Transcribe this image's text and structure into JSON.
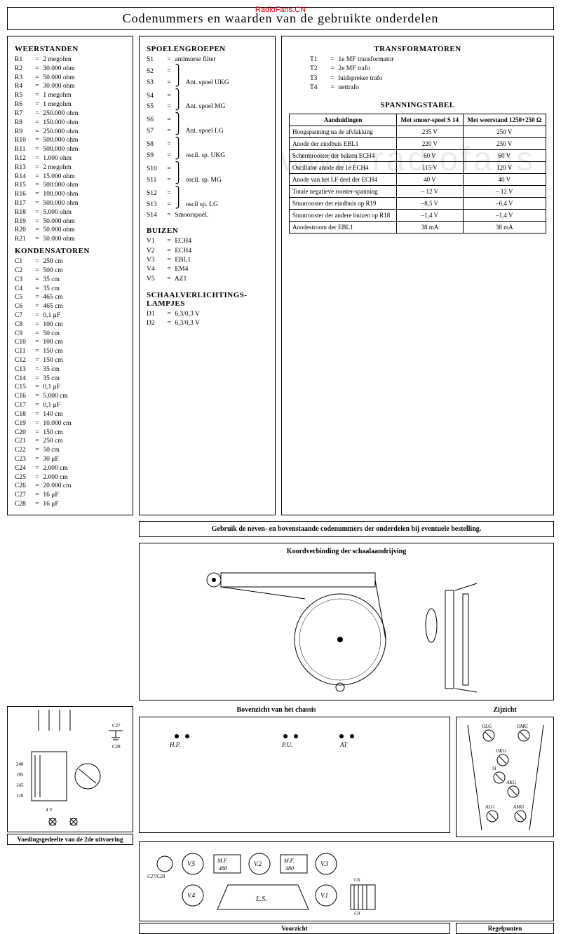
{
  "title": "Codenummers en waarden van de gebruikte onderdelen",
  "watermark_top": "RadioFans.CN",
  "watermark_bg": "www.radiofans",
  "sections": {
    "weerstanden": {
      "title": "WEERSTANDEN",
      "items": [
        {
          "ref": "R1",
          "val": "2 megohm"
        },
        {
          "ref": "R2",
          "val": "30.000 ohm"
        },
        {
          "ref": "R3",
          "val": "50.000 ohm"
        },
        {
          "ref": "R4",
          "val": "30.000 ohm"
        },
        {
          "ref": "R5",
          "val": "1 megohm"
        },
        {
          "ref": "R6",
          "val": "1 megohm"
        },
        {
          "ref": "R7",
          "val": "250.000 ohm"
        },
        {
          "ref": "R8",
          "val": "150.000 ohm"
        },
        {
          "ref": "R9",
          "val": "250.000 ohm"
        },
        {
          "ref": "R10",
          "val": "500.000 ohm"
        },
        {
          "ref": "R11",
          "val": "500.000 ohm"
        },
        {
          "ref": "R12",
          "val": "1.000 ohm"
        },
        {
          "ref": "R13",
          "val": "2 megohm"
        },
        {
          "ref": "R14",
          "val": "15.000 ohm"
        },
        {
          "ref": "R15",
          "val": "500.000 ohm"
        },
        {
          "ref": "R16",
          "val": "100.000 ohm"
        },
        {
          "ref": "R17",
          "val": "500.000 ohm"
        },
        {
          "ref": "R18",
          "val": "5.000 ohm"
        },
        {
          "ref": "R19",
          "val": "50.000 ohm"
        },
        {
          "ref": "R20",
          "val": "50.000 ohm"
        },
        {
          "ref": "R21",
          "val": "50.000 ohm"
        }
      ]
    },
    "kondensatoren": {
      "title": "KONDENSATOREN",
      "items": [
        {
          "ref": "C1",
          "val": "250 cm"
        },
        {
          "ref": "C2",
          "val": "500 cm"
        },
        {
          "ref": "C3",
          "val": "35 cm"
        },
        {
          "ref": "C4",
          "val": "35 cm"
        },
        {
          "ref": "C5",
          "val": "465 cm"
        },
        {
          "ref": "C6",
          "val": "465 cm"
        },
        {
          "ref": "C7",
          "val": "0,1 μF"
        },
        {
          "ref": "C8",
          "val": "100 cm"
        },
        {
          "ref": "C9",
          "val": "50 cm"
        },
        {
          "ref": "C10",
          "val": "100 cm"
        },
        {
          "ref": "C11",
          "val": "150 cm"
        },
        {
          "ref": "C12",
          "val": "150 cm"
        },
        {
          "ref": "C13",
          "val": "35 cm"
        },
        {
          "ref": "C14",
          "val": "35 cm"
        },
        {
          "ref": "C15",
          "val": "0,1 μF"
        },
        {
          "ref": "C16",
          "val": "5.000 cm"
        },
        {
          "ref": "C17",
          "val": "0,1 μF"
        },
        {
          "ref": "C18",
          "val": "140 cm"
        },
        {
          "ref": "C19",
          "val": "10.000 cm"
        },
        {
          "ref": "C20",
          "val": "150 cm"
        },
        {
          "ref": "C21",
          "val": "250 cm"
        },
        {
          "ref": "C22",
          "val": "50 cm"
        },
        {
          "ref": "C23",
          "val": "30 μF"
        },
        {
          "ref": "C24",
          "val": "2.000 cm"
        },
        {
          "ref": "C25",
          "val": "2.000 cm"
        },
        {
          "ref": "C26",
          "val": "20.000 cm"
        },
        {
          "ref": "C27",
          "val": "16 μF"
        },
        {
          "ref": "C28",
          "val": "16 μF"
        }
      ]
    },
    "spoelengroepen": {
      "title": "SPOELENGROEPEN",
      "s1": {
        "ref": "S1",
        "val": "antimorse filter"
      },
      "groups": [
        {
          "refs": [
            "S2",
            "S3"
          ],
          "val": "Ant. spoel UKG"
        },
        {
          "refs": [
            "S4",
            "S5"
          ],
          "val": "Ant. spoel MG"
        },
        {
          "refs": [
            "S6",
            "S7"
          ],
          "val": "Ant. spoel LG"
        },
        {
          "refs": [
            "S8",
            "S9"
          ],
          "val": "oscil. sp. UKG"
        },
        {
          "refs": [
            "S10",
            "S11"
          ],
          "val": "oscil. sp. MG"
        },
        {
          "refs": [
            "S12",
            "S13"
          ],
          "val": "oscil sp. LG"
        }
      ],
      "s14": {
        "ref": "S14",
        "val": "Smoorspoel."
      }
    },
    "buizen": {
      "title": "BUIZEN",
      "items": [
        {
          "ref": "V1",
          "val": "ECH4"
        },
        {
          "ref": "V2",
          "val": "ECH4"
        },
        {
          "ref": "V3",
          "val": "EBL1"
        },
        {
          "ref": "V4",
          "val": "EM4"
        },
        {
          "ref": "V5",
          "val": "AZ1"
        }
      ]
    },
    "lampjes": {
      "title": "SCHAALVERLICHTINGS-LAMPJES",
      "items": [
        {
          "ref": "D1",
          "val": "6,3/0,3 V"
        },
        {
          "ref": "D2",
          "val": "6,3/0,3 V"
        }
      ]
    },
    "transformatoren": {
      "title": "TRANSFORMATOREN",
      "items": [
        {
          "ref": "T1",
          "val": "1e MF transformator"
        },
        {
          "ref": "T2",
          "val": "2e MF trafo"
        },
        {
          "ref": "T3",
          "val": "luidspreker trafo"
        },
        {
          "ref": "T4",
          "val": "nettrafo"
        }
      ]
    },
    "spanningstabel": {
      "title": "SPANNINGSTABEL",
      "headers": [
        "Aanduidingen",
        "Met smoor-spoel S 14",
        "Met weerstand 1250+250 Ω"
      ],
      "rows": [
        [
          "Hoogspanning na de afvlakking",
          "235 V",
          "250 V"
        ],
        [
          "Anode der eindbuis EBL1",
          "220 V",
          "250 V"
        ],
        [
          "Schermrooster der buizen ECH4",
          "60 V",
          "60 V"
        ],
        [
          "Oscillator anode der 1e ECH4",
          "115 V",
          "120 V"
        ],
        [
          "Anode van het LF deel der ECH4",
          "40 V",
          "40 V"
        ],
        [
          "Totale negatieve rooster-spanning",
          "– 12 V",
          "– 12 V"
        ],
        [
          "Stuurrooster der eindbuis op R19",
          "–8,5 V",
          "–6,4 V"
        ],
        [
          "Stuurrooster der andere buizen op R18",
          "–1,4 V",
          "–1,4 V"
        ],
        [
          "Anodestroom der EBL1",
          "38 mA",
          "38 mA"
        ]
      ]
    }
  },
  "note": "Gebruik de neven- en bovenstaande codenummers der onderdelen bij eventuele bestelling.",
  "diagrams": {
    "dial": "Koordverbinding der schaalaandrijving",
    "chassis_top": "Bovenzicht van het chassis",
    "side": "Zijzicht",
    "chassis_labels": {
      "hp": "H.P.",
      "pu": "P.U.",
      "at": "AT",
      "v5": "V.5",
      "mf": "M.F. 480",
      "v2": "V.2",
      "v3": "V.3",
      "v4": "V.4",
      "v1": "V.1",
      "ls": "L.S.",
      "c27": "C27/C28",
      "c6": "C6",
      "c9": "C9"
    },
    "regel_labels": [
      "OLG",
      "OMG",
      "OKG",
      "Sl",
      "AKG",
      "ALG",
      "AMG"
    ],
    "voeding": "Voedingsgedeelte van de 2de uitvoering",
    "voorzicht": "Voorzicht",
    "regelpunten": "Regelpunten"
  }
}
